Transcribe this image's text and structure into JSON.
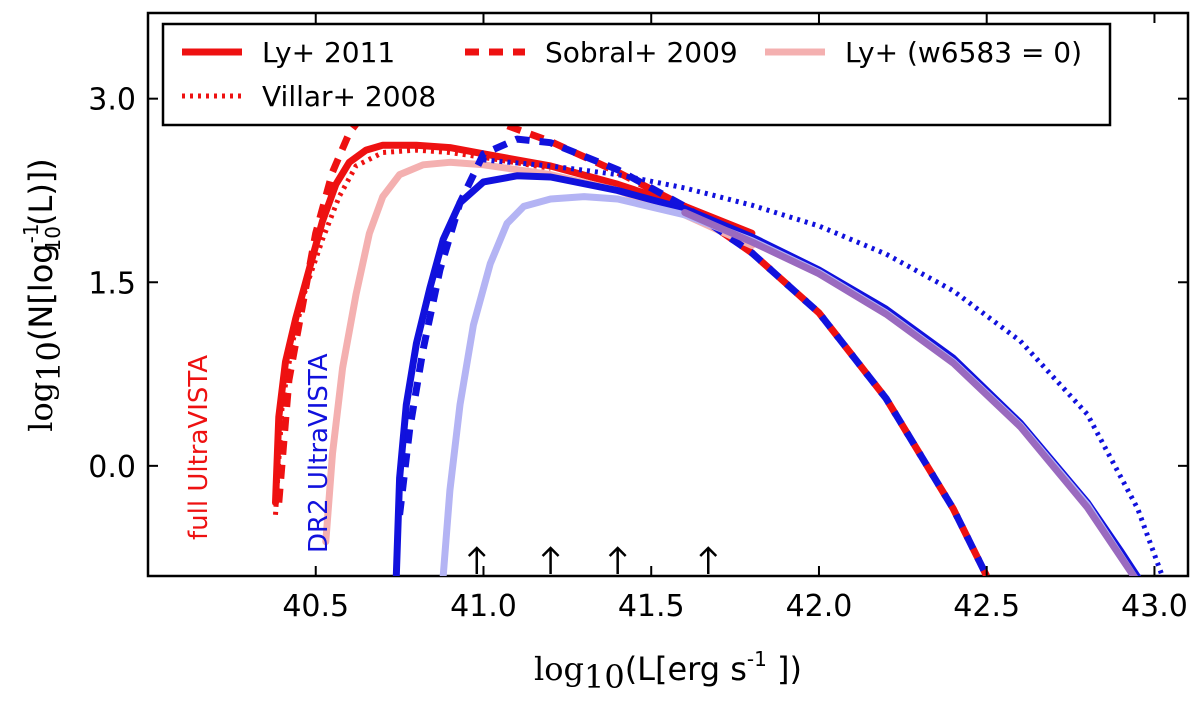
{
  "chart_data": {
    "type": "line",
    "title": "",
    "xlabel": {
      "prefix": "log",
      "sub": "10",
      "body": "(L[erg  s",
      "sup": "-1",
      "suffix": " ])"
    },
    "ylabel": {
      "prefix": "log",
      "sub": "10",
      "body": "(N[log",
      "sup": "-1",
      "sub2": "10",
      "suffix": "(L)])"
    },
    "xlim": [
      40.0,
      43.1
    ],
    "ylim": [
      -0.9,
      3.7
    ],
    "xticks": [
      40.5,
      41.0,
      41.5,
      42.0,
      42.5,
      43.0
    ],
    "xtick_labels": [
      "40.5",
      "41.0",
      "41.5",
      "42.0",
      "42.5",
      "43.0"
    ],
    "yticks": [
      0.0,
      1.5,
      3.0
    ],
    "ytick_labels": [
      "0.0",
      "1.5",
      "3.0"
    ],
    "legend": {
      "placement": "top",
      "entries": [
        {
          "label": "Ly+ 2011",
          "color": "#ee1111",
          "style": "solid"
        },
        {
          "label": "Sobral+ 2009",
          "color": "#ee1111",
          "style": "dashed"
        },
        {
          "label": "Ly+ (w6583 = 0)",
          "color": "#f4a8a8",
          "style": "solid"
        },
        {
          "label": "Villar+ 2008",
          "color": "#ee1111",
          "style": "dotted"
        }
      ]
    },
    "annotations": [
      {
        "text": "full UltraVISTA",
        "color": "#ee1111"
      },
      {
        "text": "DR2 UltraVISTA",
        "color": "#1111dd"
      }
    ],
    "arrows_x": [
      40.98,
      41.2,
      41.4,
      41.67
    ],
    "series": [
      {
        "name": "Ly+ 2011 (full UltraVISTA)",
        "color": "#ee1111",
        "style": "solid",
        "x": [
          40.38,
          40.39,
          40.41,
          40.44,
          40.48,
          40.52,
          40.56,
          40.6,
          40.65,
          40.7,
          40.8,
          40.9,
          41.0,
          41.2,
          41.4,
          41.6,
          41.8
        ],
        "y": [
          -0.3,
          0.4,
          0.85,
          1.2,
          1.6,
          2.0,
          2.3,
          2.48,
          2.58,
          2.62,
          2.62,
          2.6,
          2.55,
          2.45,
          2.3,
          2.12,
          1.9
        ]
      },
      {
        "name": "Sobral+ 2009 (full UltraVISTA)",
        "color": "#ee1111",
        "style": "dashed",
        "x": [
          40.39,
          40.42,
          40.46,
          40.5,
          40.55,
          40.6,
          40.65,
          40.7,
          40.75,
          40.85,
          41.0,
          41.2,
          41.4,
          41.6,
          41.8,
          42.0,
          42.2,
          42.4,
          42.5
        ],
        "y": [
          -0.3,
          0.7,
          1.3,
          1.9,
          2.4,
          2.72,
          2.9,
          2.96,
          2.97,
          2.94,
          2.85,
          2.65,
          2.4,
          2.12,
          1.74,
          1.25,
          0.55,
          -0.35,
          -0.9
        ]
      },
      {
        "name": "Villar+ 2008 (full UltraVISTA)",
        "color": "#ee1111",
        "style": "dotted",
        "x": [
          40.38,
          40.4,
          40.43,
          40.47,
          40.52,
          40.57,
          40.62,
          40.7,
          40.8,
          40.9,
          41.0,
          41.2
        ],
        "y": [
          -0.4,
          0.5,
          1.0,
          1.45,
          1.85,
          2.2,
          2.45,
          2.56,
          2.58,
          2.56,
          2.52,
          2.43
        ]
      },
      {
        "name": "Ly+ (w6583 = 0) full",
        "color": "#f4b0b0",
        "style": "solid",
        "x": [
          40.53,
          40.55,
          40.58,
          40.62,
          40.66,
          40.7,
          40.75,
          40.82,
          40.9,
          41.0,
          41.2,
          41.4,
          41.6,
          41.8
        ],
        "y": [
          -0.62,
          0.1,
          0.8,
          1.4,
          1.9,
          2.2,
          2.38,
          2.46,
          2.48,
          2.46,
          2.38,
          2.25,
          2.05,
          1.8
        ]
      },
      {
        "name": "Ly+ 2011 (DR2 UltraVISTA)",
        "color": "#1111dd",
        "style": "solid",
        "x": [
          40.74,
          40.75,
          40.77,
          40.8,
          40.84,
          40.88,
          40.93,
          41.0,
          41.1,
          41.2,
          41.4,
          41.6,
          41.8,
          42.0,
          42.2,
          42.4,
          42.6,
          42.8,
          42.9,
          42.96
        ],
        "y": [
          -0.9,
          -0.1,
          0.5,
          1.0,
          1.45,
          1.85,
          2.15,
          2.32,
          2.37,
          2.36,
          2.25,
          2.1,
          1.87,
          1.6,
          1.28,
          0.88,
          0.35,
          -0.3,
          -0.7,
          -0.95
        ]
      },
      {
        "name": "Sobral+ 2009 (DR2 UltraVISTA)",
        "color": "#1111dd",
        "style": "dashed",
        "x": [
          40.75,
          40.78,
          40.82,
          40.87,
          40.93,
          41.0,
          41.1,
          41.2,
          41.4,
          41.6,
          41.8,
          42.0,
          42.2,
          42.4,
          42.5
        ],
        "y": [
          -0.4,
          0.3,
          0.95,
          1.6,
          2.15,
          2.55,
          2.67,
          2.64,
          2.42,
          2.12,
          1.74,
          1.25,
          0.55,
          -0.35,
          -0.9
        ]
      },
      {
        "name": "Villar+ 2008 (DR2 UltraVISTA)",
        "color": "#1111dd",
        "style": "dotted",
        "x": [
          41.0,
          41.2,
          41.4,
          41.6,
          41.8,
          42.0,
          42.2,
          42.4,
          42.6,
          42.8,
          42.95,
          43.03
        ],
        "y": [
          2.5,
          2.45,
          2.38,
          2.27,
          2.13,
          1.96,
          1.73,
          1.43,
          1.02,
          0.42,
          -0.35,
          -0.95
        ]
      },
      {
        "name": "Ly+ (w6583 = 0) DR2",
        "color": "#b4b4f4",
        "style": "solid",
        "x": [
          40.88,
          40.9,
          40.93,
          40.97,
          41.02,
          41.07,
          41.12,
          41.2,
          41.3,
          41.4,
          41.6,
          41.8,
          42.0,
          42.2,
          42.4,
          42.6,
          42.8,
          42.95
        ],
        "y": [
          -0.9,
          -0.2,
          0.5,
          1.15,
          1.65,
          1.98,
          2.12,
          2.18,
          2.2,
          2.18,
          2.05,
          1.84,
          1.58,
          1.25,
          0.85,
          0.33,
          -0.32,
          -0.95
        ]
      },
      {
        "name": "Purple overlap",
        "color": "#9a6abf",
        "style": "solid",
        "x": [
          41.6,
          41.8,
          42.0,
          42.2,
          42.4,
          42.6,
          42.8,
          42.95
        ],
        "y": [
          2.07,
          1.83,
          1.57,
          1.24,
          0.84,
          0.32,
          -0.34,
          -0.95
        ]
      }
    ]
  }
}
